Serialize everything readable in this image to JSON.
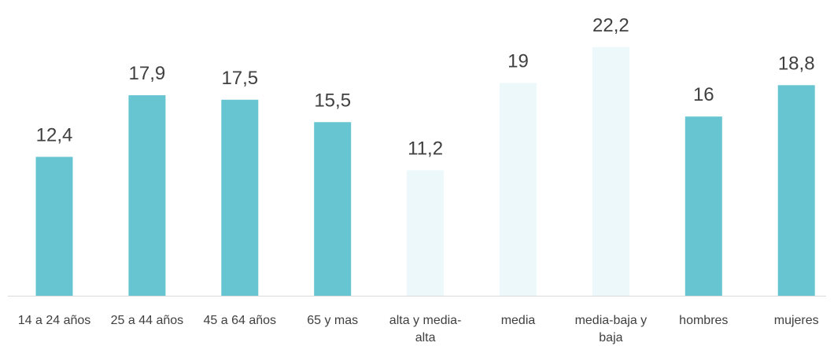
{
  "chart_data": {
    "type": "bar",
    "categories": [
      "14 a 24 años",
      "25 a 44 años",
      "45 a 64 años",
      "65 y mas",
      "alta y media-alta",
      "media",
      "media-baja y baja",
      "hombres",
      "mujeres"
    ],
    "values": [
      12.4,
      17.9,
      17.5,
      15.5,
      11.2,
      19,
      22.2,
      16,
      18.8
    ],
    "value_labels": [
      "12,4",
      "17,9",
      "17,5",
      "15,5",
      "11,2",
      "19",
      "22,2",
      "16",
      "18,8"
    ],
    "colors": [
      "#67c5d1",
      "#67c5d1",
      "#67c5d1",
      "#67c5d1",
      "#ecf8fa",
      "#ecf8fa",
      "#ecf8fa",
      "#67c5d1",
      "#67c5d1"
    ]
  }
}
